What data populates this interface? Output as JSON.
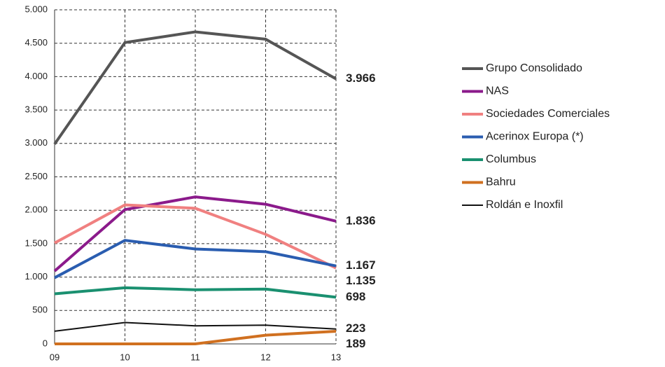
{
  "chart_data": {
    "type": "line",
    "categories": [
      "09",
      "10",
      "11",
      "12",
      "13"
    ],
    "ylim": [
      0,
      5000
    ],
    "yticks": [
      0,
      500,
      {
        "value": 1000,
        "label": "1.000"
      },
      {
        "value": 1500,
        "label": "1.500"
      },
      {
        "value": 2000,
        "label": "2.000"
      },
      {
        "value": 2500,
        "label": "2.500"
      },
      {
        "value": 3000,
        "label": "3.000"
      },
      {
        "value": 3500,
        "label": "3.500"
      },
      {
        "value": 4000,
        "label": "4.000"
      },
      {
        "value": 4500,
        "label": "4.500"
      },
      {
        "value": 5000,
        "label": "5.000"
      }
    ],
    "grid": true,
    "legend": "right",
    "series": [
      {
        "name": "Grupo Consolidado",
        "color": "#555555",
        "values": [
          2990,
          4510,
          4670,
          4560,
          3966
        ],
        "value_labels": [
          null,
          null,
          null,
          null,
          "3.966"
        ]
      },
      {
        "name": "NAS",
        "color": "#8b1a8b",
        "values": [
          1090,
          2010,
          2200,
          2090,
          1836
        ],
        "value_labels": [
          null,
          null,
          null,
          null,
          "1.836"
        ]
      },
      {
        "name": "Sociedades Comerciales",
        "color": "#f08080",
        "values": [
          1510,
          2080,
          2030,
          1640,
          1135
        ],
        "value_labels": [
          null,
          null,
          null,
          null,
          "1.135"
        ]
      },
      {
        "name": "Acerinox Europa (*)",
        "color": "#2a5db0",
        "values": [
          990,
          1550,
          1420,
          1380,
          1167
        ],
        "value_labels": [
          null,
          null,
          null,
          null,
          "1.167"
        ]
      },
      {
        "name": "Columbus",
        "color": "#1a9070",
        "values": [
          750,
          840,
          810,
          820,
          698
        ],
        "value_labels": [
          null,
          null,
          null,
          null,
          "698"
        ]
      },
      {
        "name": "Bahru",
        "color": "#d07020",
        "values": [
          0,
          0,
          0,
          130,
          189
        ],
        "value_labels": [
          null,
          null,
          null,
          null,
          "189"
        ]
      },
      {
        "name": "Roldán e Inoxfil",
        "color": "#111111",
        "values": [
          190,
          320,
          270,
          280,
          223
        ],
        "value_labels": [
          null,
          null,
          null,
          null,
          "223"
        ]
      }
    ]
  }
}
